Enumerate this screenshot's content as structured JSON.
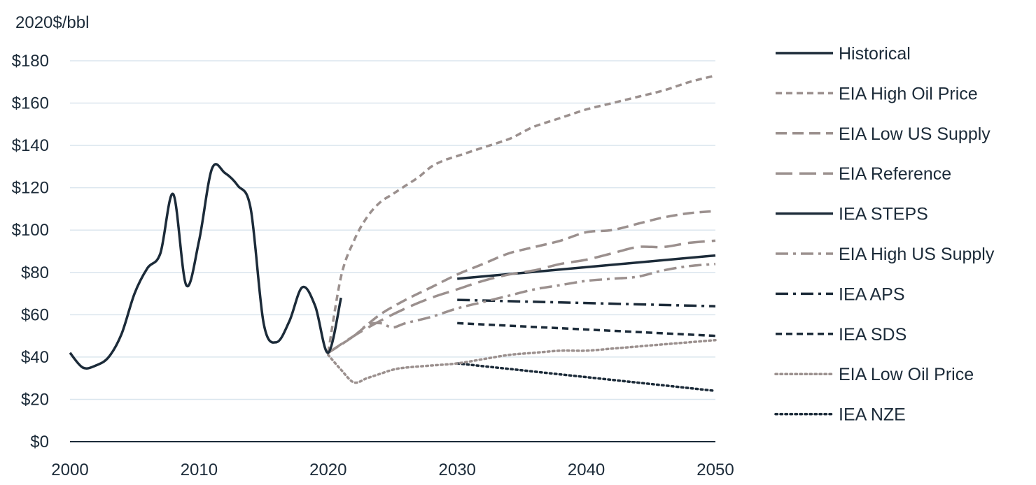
{
  "chart_data": {
    "type": "line",
    "title": "",
    "ylabel": "2020$/bbl",
    "xlabel": "",
    "xlim": [
      2000,
      2050
    ],
    "ylim": [
      0,
      180
    ],
    "x_ticks": [
      2000,
      2010,
      2020,
      2030,
      2040,
      2050
    ],
    "x_tick_labels": [
      "2000",
      "2010",
      "2020",
      "2030",
      "2040",
      "2050"
    ],
    "y_ticks": [
      0,
      20,
      40,
      60,
      80,
      100,
      120,
      140,
      160,
      180
    ],
    "y_tick_labels": [
      "$0",
      "$20",
      "$40",
      "$60",
      "$80",
      "$100",
      "$120",
      "$140",
      "$160",
      "$180"
    ],
    "grid": true,
    "legend_position": "right",
    "colors": {
      "dark": "#1c2b39",
      "gray": "#9b908e",
      "grid": "#dbe6ee"
    },
    "series": [
      {
        "name": "Historical",
        "color": "#1c2b39",
        "style": "solid",
        "points": [
          [
            2000,
            42
          ],
          [
            2001,
            35
          ],
          [
            2002,
            36
          ],
          [
            2003,
            40
          ],
          [
            2004,
            51
          ],
          [
            2005,
            70
          ],
          [
            2006,
            82
          ],
          [
            2007,
            89
          ],
          [
            2008,
            117
          ],
          [
            2009,
            74
          ],
          [
            2010,
            95
          ],
          [
            2011,
            129
          ],
          [
            2012,
            127
          ],
          [
            2013,
            121
          ],
          [
            2014,
            110
          ],
          [
            2015,
            56
          ],
          [
            2016,
            47
          ],
          [
            2017,
            57
          ],
          [
            2018,
            73
          ],
          [
            2019,
            64
          ],
          [
            2020,
            42
          ],
          [
            2021,
            68
          ]
        ]
      },
      {
        "name": "EIA High Oil Price",
        "color": "#9b908e",
        "style": "dashed-short",
        "points": [
          [
            2020,
            42
          ],
          [
            2021,
            78
          ],
          [
            2022,
            95
          ],
          [
            2023,
            106
          ],
          [
            2024,
            113
          ],
          [
            2025,
            117
          ],
          [
            2026,
            121
          ],
          [
            2027,
            125
          ],
          [
            2028,
            130
          ],
          [
            2029,
            133
          ],
          [
            2030,
            135
          ],
          [
            2032,
            139
          ],
          [
            2034,
            143
          ],
          [
            2035,
            146
          ],
          [
            2036,
            149
          ],
          [
            2038,
            153
          ],
          [
            2040,
            157
          ],
          [
            2042,
            160
          ],
          [
            2044,
            163
          ],
          [
            2046,
            166
          ],
          [
            2048,
            170
          ],
          [
            2050,
            173
          ]
        ]
      },
      {
        "name": "EIA Low US Supply",
        "color": "#9b908e",
        "style": "dashed-medium",
        "points": [
          [
            2020,
            42
          ],
          [
            2022,
            50
          ],
          [
            2024,
            60
          ],
          [
            2026,
            67
          ],
          [
            2028,
            73
          ],
          [
            2030,
            79
          ],
          [
            2032,
            84
          ],
          [
            2034,
            89
          ],
          [
            2036,
            92
          ],
          [
            2038,
            95
          ],
          [
            2040,
            99
          ],
          [
            2042,
            100
          ],
          [
            2044,
            103
          ],
          [
            2046,
            106
          ],
          [
            2048,
            108
          ],
          [
            2050,
            109
          ]
        ]
      },
      {
        "name": "EIA Reference",
        "color": "#9b908e",
        "style": "dashed-long",
        "points": [
          [
            2020,
            42
          ],
          [
            2022,
            50
          ],
          [
            2024,
            57
          ],
          [
            2026,
            63
          ],
          [
            2028,
            68
          ],
          [
            2030,
            72
          ],
          [
            2032,
            76
          ],
          [
            2034,
            79
          ],
          [
            2036,
            81
          ],
          [
            2038,
            84
          ],
          [
            2040,
            86
          ],
          [
            2042,
            89
          ],
          [
            2044,
            92
          ],
          [
            2046,
            92
          ],
          [
            2048,
            94
          ],
          [
            2050,
            95
          ]
        ]
      },
      {
        "name": "IEA STEPS",
        "color": "#1c2b39",
        "style": "solid",
        "points": [
          [
            2030,
            77
          ],
          [
            2050,
            88
          ]
        ]
      },
      {
        "name": "EIA High US Supply",
        "color": "#9b908e",
        "style": "dash-dot",
        "points": [
          [
            2020,
            42
          ],
          [
            2022,
            50
          ],
          [
            2023,
            55
          ],
          [
            2024,
            56
          ],
          [
            2025,
            54
          ],
          [
            2026,
            56
          ],
          [
            2028,
            59
          ],
          [
            2030,
            63
          ],
          [
            2032,
            66
          ],
          [
            2034,
            69
          ],
          [
            2036,
            72
          ],
          [
            2038,
            74
          ],
          [
            2040,
            76
          ],
          [
            2042,
            77
          ],
          [
            2044,
            78
          ],
          [
            2046,
            81
          ],
          [
            2048,
            83
          ],
          [
            2050,
            84
          ]
        ]
      },
      {
        "name": "IEA APS",
        "color": "#1c2b39",
        "style": "dash-dot",
        "points": [
          [
            2030,
            67
          ],
          [
            2050,
            64
          ]
        ]
      },
      {
        "name": "IEA SDS",
        "color": "#1c2b39",
        "style": "dashed-short",
        "points": [
          [
            2030,
            56
          ],
          [
            2050,
            50
          ]
        ]
      },
      {
        "name": "EIA Low Oil Price",
        "color": "#9b908e",
        "style": "dotted",
        "points": [
          [
            2020,
            41
          ],
          [
            2021,
            34
          ],
          [
            2022,
            28
          ],
          [
            2023,
            30
          ],
          [
            2024,
            32
          ],
          [
            2025,
            34
          ],
          [
            2026,
            35
          ],
          [
            2028,
            36
          ],
          [
            2030,
            37
          ],
          [
            2032,
            39
          ],
          [
            2034,
            41
          ],
          [
            2036,
            42
          ],
          [
            2038,
            43
          ],
          [
            2040,
            43
          ],
          [
            2042,
            44
          ],
          [
            2044,
            45
          ],
          [
            2046,
            46
          ],
          [
            2048,
            47
          ],
          [
            2050,
            48
          ]
        ]
      },
      {
        "name": "IEA NZE",
        "color": "#1c2b39",
        "style": "dotted",
        "points": [
          [
            2030,
            37
          ],
          [
            2050,
            24
          ]
        ]
      }
    ]
  }
}
